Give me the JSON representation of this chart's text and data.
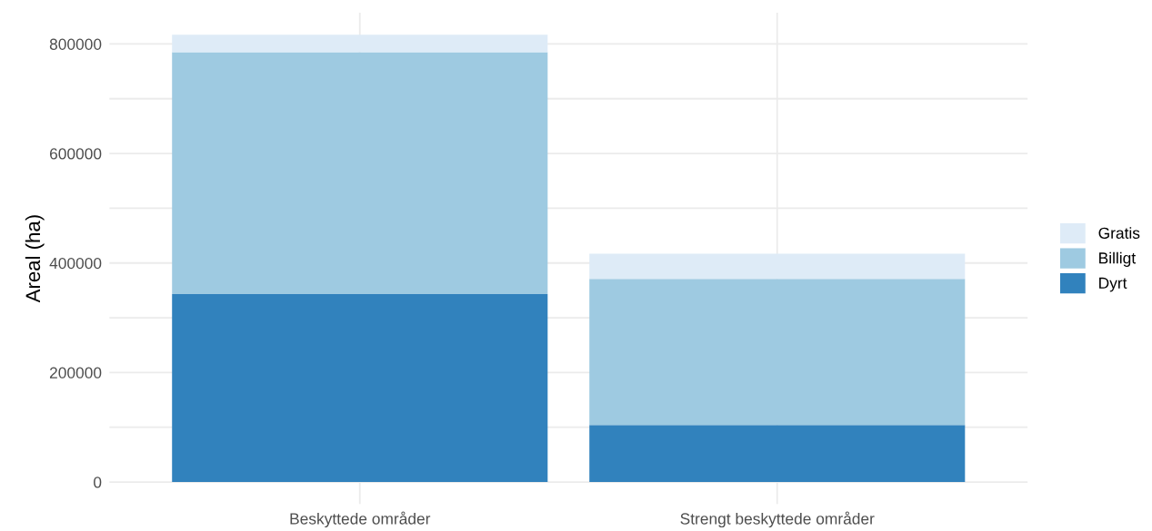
{
  "chart_data": {
    "type": "bar",
    "ylabel": "Areal (ha)",
    "stacked": true,
    "categories": [
      "Beskyttede områder",
      "Strengt beskyttede områder"
    ],
    "series": [
      {
        "name": "Dyrt",
        "color": "#3182bd",
        "values": [
          343000,
          104000
        ]
      },
      {
        "name": "Billigt",
        "color": "#9ecae1",
        "values": [
          442000,
          267000
        ]
      },
      {
        "name": "Gratis",
        "color": "#deebf7",
        "values": [
          32000,
          46000
        ]
      }
    ],
    "ylim": [
      -40000,
      857000
    ],
    "yticks": [
      0,
      {
        "value": 100000,
        "label": null
      },
      200000,
      {
        "value": 300000,
        "label": null
      },
      400000,
      {
        "value": 500000,
        "label": null
      },
      600000,
      {
        "value": 700000,
        "label": null
      },
      800000
    ],
    "grid": true,
    "legend": "right"
  }
}
